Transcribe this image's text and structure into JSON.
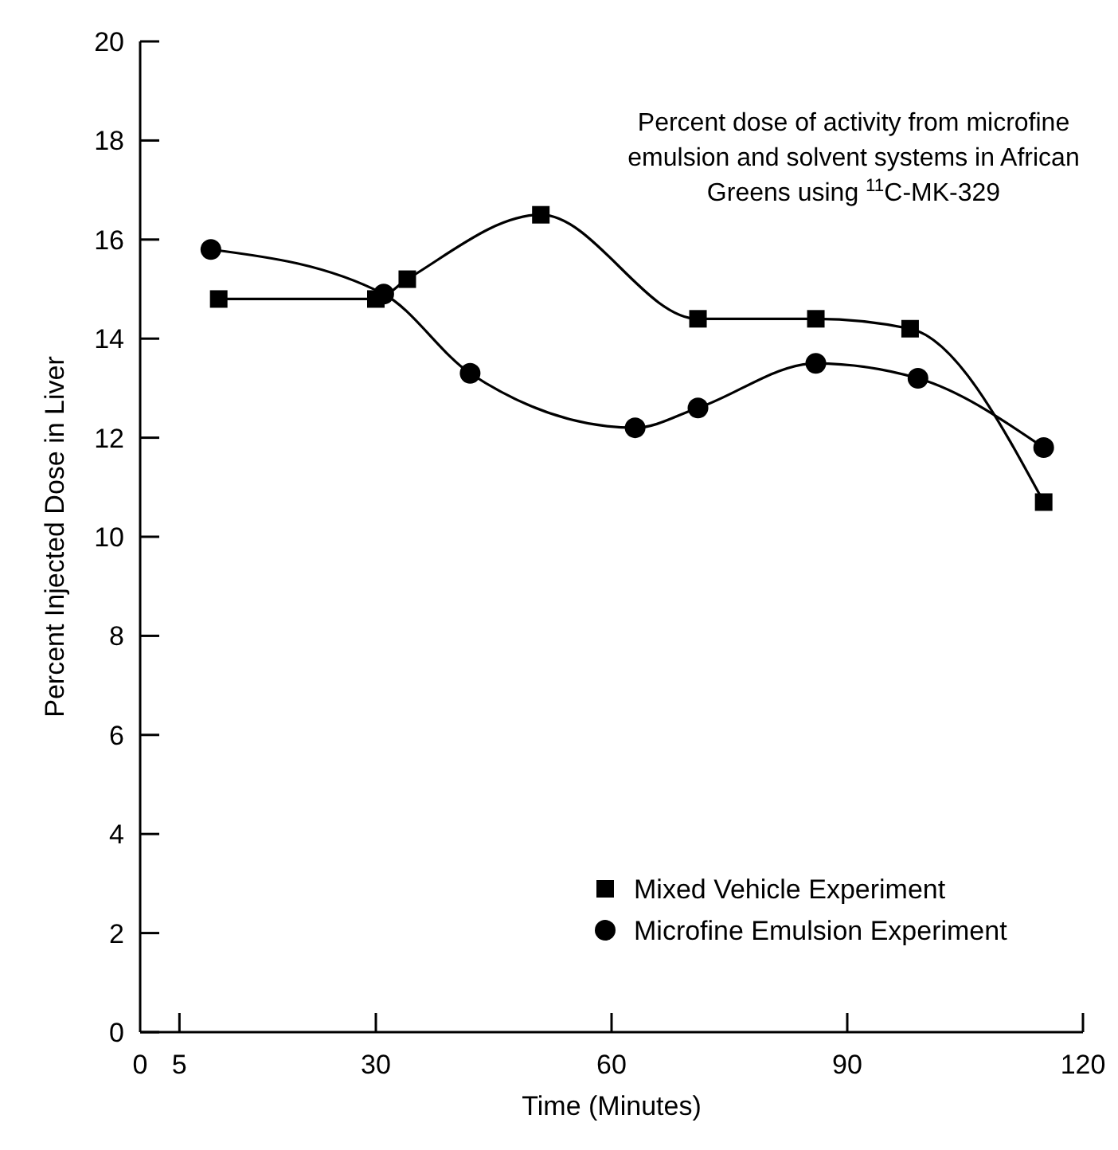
{
  "chart_data": {
    "type": "line",
    "xlabel": "Time (Minutes)",
    "ylabel": "Percent Injected Dose in Liver",
    "xlim": [
      0,
      120
    ],
    "xticks": [
      0,
      5,
      30,
      60,
      90,
      120
    ],
    "ylim": [
      0,
      20
    ],
    "yticks": [
      0,
      2,
      4,
      6,
      8,
      10,
      12,
      14,
      16,
      18,
      20
    ],
    "grid": false,
    "legend": "bottom right",
    "line_style": "solid",
    "annotations": [
      "Percent dose of activity from microfine\nemulsion and solvent systems in African\nGreens using $^{11}$C-MK-329"
    ],
    "series": [
      {
        "name": "Mixed Vehicle Experiment",
        "color": "#000000",
        "marker": "square",
        "x": [
          10,
          30,
          34,
          51,
          71,
          86,
          98,
          115
        ],
        "values": [
          14.8,
          14.8,
          15.2,
          16.5,
          14.4,
          14.4,
          14.2,
          10.7
        ]
      },
      {
        "name": "Microfine Emulsion Experiment",
        "color": "#000000",
        "marker": "circle",
        "x": [
          9,
          31,
          42,
          63,
          71,
          86,
          99,
          115
        ],
        "values": [
          15.8,
          14.9,
          13.3,
          12.2,
          12.6,
          13.5,
          13.2,
          11.8
        ]
      }
    ]
  }
}
